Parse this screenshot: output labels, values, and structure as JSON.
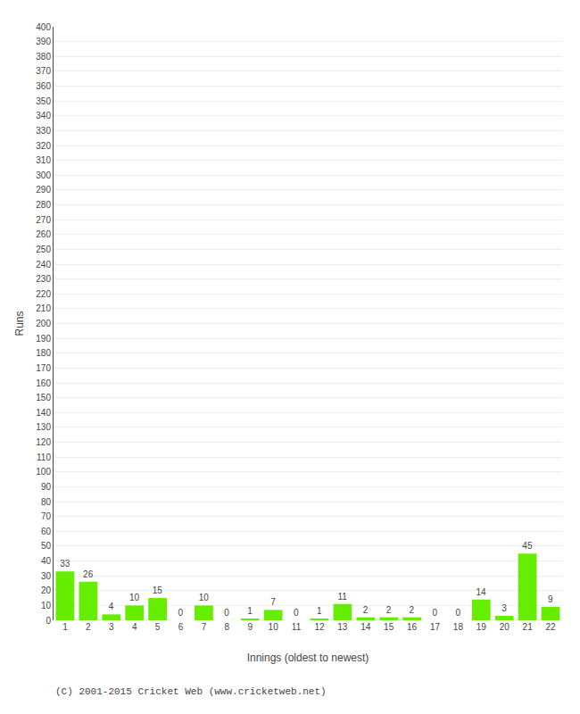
{
  "chart_data": {
    "type": "bar",
    "categories": [
      "1",
      "2",
      "3",
      "4",
      "5",
      "6",
      "7",
      "8",
      "9",
      "10",
      "11",
      "12",
      "13",
      "14",
      "15",
      "16",
      "17",
      "18",
      "19",
      "20",
      "21",
      "22"
    ],
    "values": [
      33,
      26,
      4,
      10,
      15,
      0,
      10,
      0,
      1,
      7,
      0,
      1,
      11,
      2,
      2,
      2,
      0,
      0,
      14,
      3,
      45,
      9
    ],
    "color": "#66ee00",
    "data_labels": true,
    "xlabel": "Innings (oldest to newest)",
    "ylabel": "Runs",
    "ylim": [
      0,
      400
    ],
    "yticks": [
      0,
      10,
      20,
      30,
      40,
      50,
      60,
      70,
      80,
      90,
      100,
      110,
      120,
      130,
      140,
      150,
      160,
      170,
      180,
      190,
      200,
      210,
      220,
      230,
      240,
      250,
      260,
      270,
      280,
      290,
      300,
      310,
      320,
      330,
      340,
      350,
      360,
      370,
      380,
      390,
      400
    ],
    "grid": true,
    "annotations": [
      "(C) 2001-2015 Cricket Web (www.cricketweb.net)"
    ]
  }
}
